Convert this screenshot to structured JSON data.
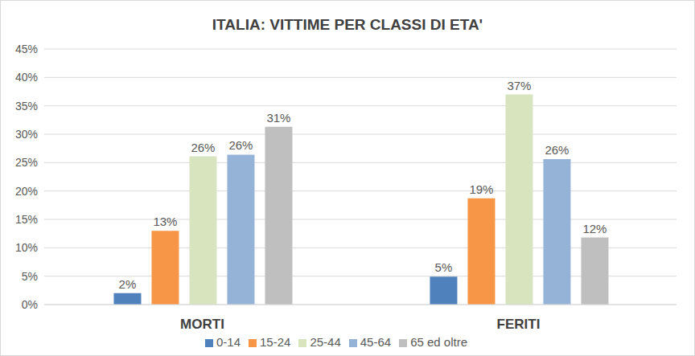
{
  "chart_data": {
    "type": "bar",
    "title": "ITALIA: VITTIME PER CLASSI DI ETA'",
    "categories": [
      "MORTI",
      "FERITI"
    ],
    "series": [
      {
        "name": "0-14",
        "color": "#4f81bd",
        "values": [
          2,
          4.9
        ],
        "value_labels": [
          "2%",
          "5%"
        ]
      },
      {
        "name": "15-24",
        "color": "#f79646",
        "values": [
          13,
          18.7
        ],
        "value_labels": [
          "13%",
          "19%"
        ]
      },
      {
        "name": "25-44",
        "color": "#d7e4bd",
        "values": [
          26.1,
          37
        ],
        "value_labels": [
          "26%",
          "37%"
        ]
      },
      {
        "name": "45-64",
        "color": "#95b3d7",
        "values": [
          26.4,
          25.6
        ],
        "value_labels": [
          "26%",
          "26%"
        ]
      },
      {
        "name": "65 ed oltre",
        "color": "#bfbfbf",
        "values": [
          31.3,
          11.8
        ],
        "value_labels": [
          "31%",
          "12%"
        ]
      }
    ],
    "ylim": [
      0,
      45
    ],
    "yticks": [
      {
        "value": 0,
        "label": "0%"
      },
      {
        "value": 5,
        "label": "5%"
      },
      {
        "value": 10,
        "label": "10%"
      },
      {
        "value": 15,
        "label": "15%"
      },
      {
        "value": 20,
        "label": "20%"
      },
      {
        "value": 25,
        "label": "25%"
      },
      {
        "value": 30,
        "label": "30%"
      },
      {
        "value": 35,
        "label": "35%"
      },
      {
        "value": 40,
        "label": "40%"
      },
      {
        "value": 45,
        "label": "45%"
      }
    ],
    "grid": true,
    "legend": "bottom",
    "data_labels": true
  }
}
